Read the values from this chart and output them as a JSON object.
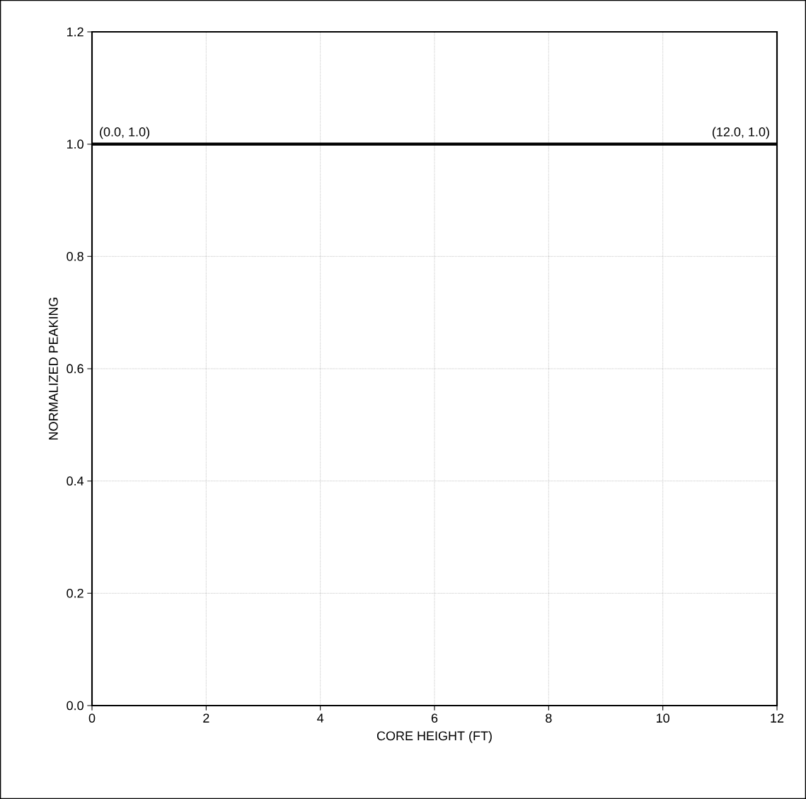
{
  "chart_data": {
    "type": "line",
    "xlabel": "CORE HEIGHT  (FT)",
    "ylabel": "NORMALIZED PEAKING",
    "x": [
      0,
      12
    ],
    "values": [
      1.0,
      1.0
    ],
    "color": "#000000",
    "xlim": [
      0,
      12
    ],
    "ylim": [
      0,
      1.2
    ],
    "xticks": [
      0,
      2,
      4,
      6,
      8,
      10,
      12
    ],
    "yticks": [
      {
        "value": 0,
        "label": "0.0"
      },
      {
        "value": 0.2,
        "label": "0.2"
      },
      {
        "value": 0.4,
        "label": "0.4"
      },
      {
        "value": 0.6,
        "label": "0.6"
      },
      {
        "value": 0.8,
        "label": "0.8"
      },
      {
        "value": 1.0,
        "label": "1.0"
      },
      {
        "value": 1.2,
        "label": "1.2"
      }
    ],
    "grid": true,
    "annotations": [
      {
        "text": "(0.0, 1.0)",
        "x": 0,
        "y": 1.0
      },
      {
        "text": "(12.0, 1.0)",
        "x": 12,
        "y": 1.0
      }
    ]
  }
}
